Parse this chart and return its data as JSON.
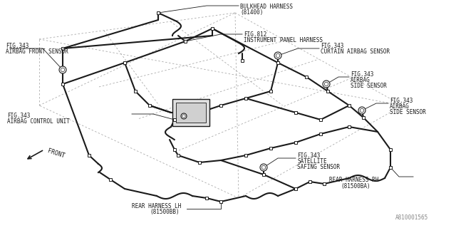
{
  "bg_color": "#ffffff",
  "line_color": "#1a1a1a",
  "dashed_color": "#aaaaaa",
  "text_color": "#1a1a1a",
  "part_number": "A810001565",
  "figsize": [
    6.4,
    3.2
  ],
  "dpi": 100,
  "labels": {
    "bulkhead": [
      "BULKHEAD HARNESS",
      "(81400)"
    ],
    "fig812": [
      "FIG.812",
      "INSTRUMENT PANEL HARNESS"
    ],
    "fig343_front": [
      "FIG.343",
      "AIRBAG FRONT SENSOR"
    ],
    "fig343_curtain": [
      "FIG.343",
      "CURTAIN AIRBAG SENSOR"
    ],
    "fig343_control": [
      "FIG.343",
      "AIRBAG CONTROL UNIT"
    ],
    "fig343_side1": [
      "FIG.343",
      "AIRBAG",
      "SIDE SENSOR"
    ],
    "fig343_side2": [
      "FIG.343",
      "AIRBAG",
      "SIDE SENSOR"
    ],
    "fig343_satellite": [
      "FIG.343",
      "SATELLITE",
      "SAFING SENSOR"
    ],
    "rear_lh": [
      "REAR HARNESS LH",
      "(81500BB)"
    ],
    "rear_rh": [
      "REAR HARNESS RH",
      "(81500BA)"
    ],
    "front": "FRONT"
  }
}
